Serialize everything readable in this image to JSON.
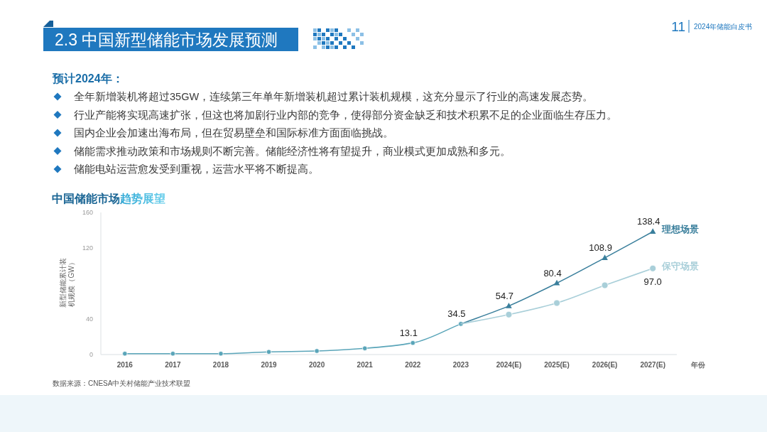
{
  "chart_data": {
    "type": "line",
    "title": "中国储能市场趋势展望",
    "ylabel": "新型储能累计装机规模（GW）",
    "xlabel": "年份",
    "categories": [
      "2016",
      "2017",
      "2018",
      "2019",
      "2020",
      "2021",
      "2022",
      "2023",
      "2024(E)",
      "2025(E)",
      "2026(E)",
      "2027(E)"
    ],
    "series": [
      {
        "color": "#5aa5b9",
        "marker": "circle",
        "values": [
          1,
          1,
          1,
          3,
          4,
          7,
          13.1,
          34.5,
          null,
          null,
          null,
          null
        ],
        "value_labels": [
          null,
          null,
          null,
          null,
          null,
          null,
          "13.1",
          "34.5",
          null,
          null,
          null,
          null
        ]
      },
      {
        "name": "理想场景",
        "color": "#3a7f9c",
        "marker": "triangle",
        "values": [
          null,
          null,
          null,
          null,
          null,
          null,
          null,
          34.5,
          54.7,
          80.4,
          108.9,
          138.4
        ],
        "value_labels": [
          null,
          null,
          null,
          null,
          null,
          null,
          null,
          null,
          "54.7",
          "80.4",
          "108.9",
          "138.4"
        ]
      },
      {
        "name": "保守场景",
        "color": "#a9cfd9",
        "marker": "circle",
        "values": [
          null,
          null,
          null,
          null,
          null,
          null,
          null,
          34.5,
          45,
          58,
          78,
          97.0
        ],
        "value_labels": [
          null,
          null,
          null,
          null,
          null,
          null,
          null,
          null,
          null,
          null,
          null,
          "97.0"
        ]
      }
    ],
    "ylim": [
      0,
      160
    ],
    "yticks": [
      0,
      40,
      120,
      160
    ],
    "grid": false,
    "legend": false,
    "line_style": "solid",
    "annotations": [
      "2.3 中国新型储能市场发展预测",
      "11",
      "2024年储能白皮书",
      "预计2024年：",
      "全年新增装机将超过35GW，连续第三年单年新增装机超过累计装机规模，这充分显示了行业的高速发展态势。",
      "行业产能将实现高速扩张，但这也将加剧行业内部的竞争，使得部分资金缺乏和技术积累不足的企业面临生存压力。",
      "国内企业会加速出海布局，但在贸易壁垒和国际标准方面面临挑战。",
      "储能需求推动政策和市场规则不断完善。储能经济性将有望提升，商业模式更加成熟和多元。",
      "储能电站运营愈发受到重视，运营水平将不断提高。",
      "数据来源：CNESA中关村储能产业技术联盟"
    ]
  }
}
